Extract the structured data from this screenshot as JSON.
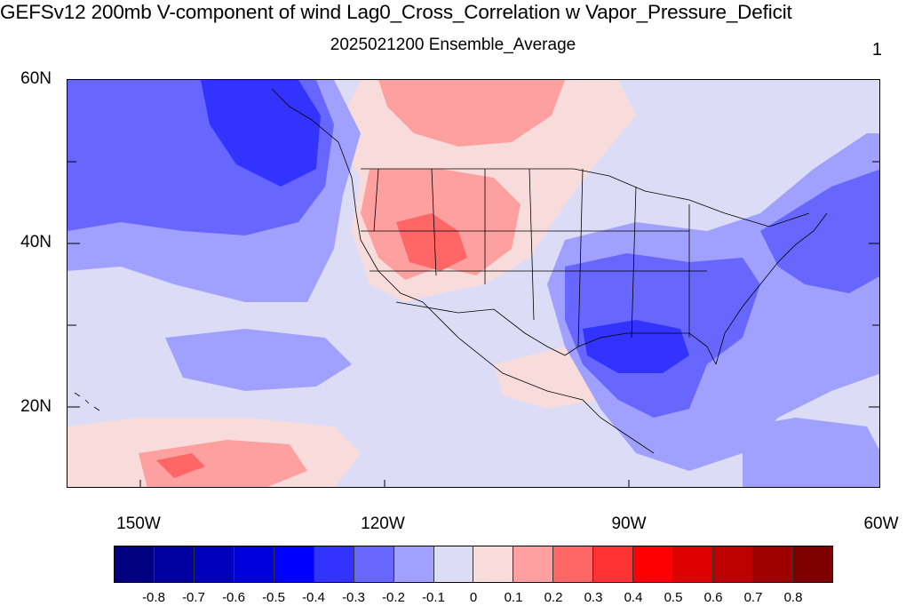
{
  "figure": {
    "title": "GEFSv12 200mb V-component of wind Lag0_Cross_Correlation w Vapor_Pressure_Deficit",
    "subtitle": "2025021200 Ensemble_Average",
    "corner_label": "1"
  },
  "map": {
    "projection": "cylindrical-equidistant",
    "lon_range": [
      -160,
      -60
    ],
    "lat_range": [
      10,
      60
    ],
    "lat_ticks": [
      "60N",
      "40N",
      "20N"
    ],
    "lon_ticks": [
      "150W",
      "120W",
      "90W",
      "60W"
    ],
    "features": [
      "coastlines",
      "us-state-borders",
      "country-borders"
    ]
  },
  "colorbar": {
    "levels": [
      "-0.8",
      "-0.7",
      "-0.6",
      "-0.5",
      "-0.4",
      "-0.3",
      "-0.2",
      "-0.1",
      "0",
      "0.1",
      "0.2",
      "0.3",
      "0.4",
      "0.5",
      "0.6",
      "0.7",
      "0.8"
    ],
    "colors": [
      "#000080",
      "#00009e",
      "#0000bd",
      "#0000dc",
      "#0000ff",
      "#3333ff",
      "#6767ff",
      "#a0a0ff",
      "#dcdcf6",
      "#f8dcdc",
      "#ffa0a0",
      "#ff6767",
      "#ff3333",
      "#ff0000",
      "#dc0000",
      "#bd0000",
      "#9e0000",
      "#800000"
    ]
  }
}
